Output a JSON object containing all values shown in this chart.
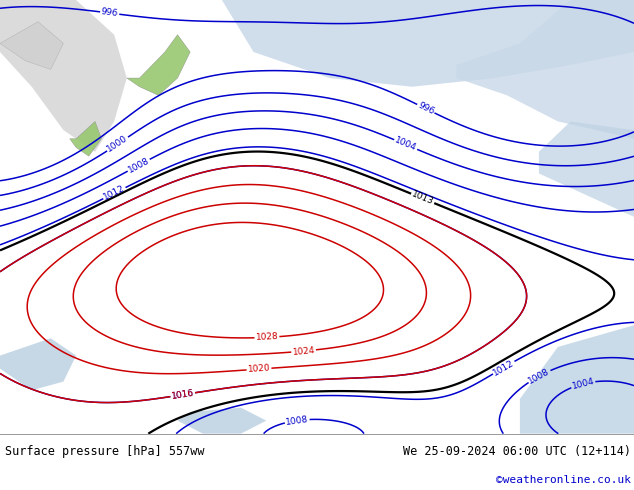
{
  "title_left": "Surface pressure [hPa] 557ww",
  "title_right": "We 25-09-2024 06:00 UTC (12+114)",
  "credit": "©weatheronline.co.uk",
  "bg_color": "#a8d878",
  "text_color": "#000000",
  "credit_color": "#0000cc",
  "footer_bg": "#ffffff",
  "label_fontsize": 7
}
